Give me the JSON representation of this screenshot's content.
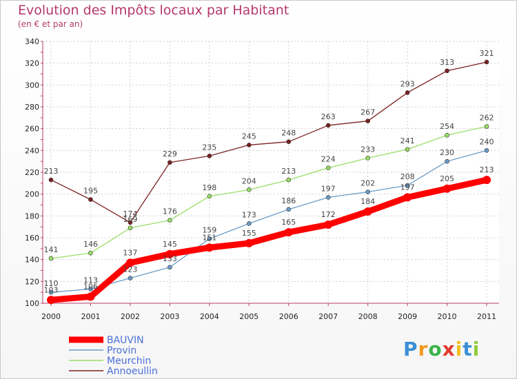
{
  "chart_data": {
    "type": "line",
    "title": "Evolution des Impôts locaux par Habitant",
    "subtitle": "(en € et par an)",
    "xlabel": "",
    "ylabel": "",
    "categories": [
      "2000",
      "2001",
      "2002",
      "2003",
      "2004",
      "2005",
      "2006",
      "2007",
      "2008",
      "2009",
      "2010",
      "2011"
    ],
    "ylim": [
      100,
      340
    ],
    "yticks": [
      100,
      120,
      140,
      160,
      180,
      200,
      220,
      240,
      260,
      280,
      300,
      320,
      340
    ],
    "legend_position": "bottom-left",
    "series": [
      {
        "name": "BAUVIN",
        "color": "#ff0000",
        "values": [
          103,
          106,
          137,
          145,
          151,
          155,
          165,
          172,
          184,
          197,
          205,
          213
        ],
        "labels": [
          "103",
          "106",
          "137",
          "145",
          "151",
          "155",
          "165",
          "172",
          "184",
          "197",
          "205",
          "213"
        ]
      },
      {
        "name": "Provin",
        "color": "#6a9bc8",
        "values": [
          110,
          113,
          123,
          133,
          159,
          173,
          186,
          197,
          202,
          208,
          230,
          240
        ],
        "labels": [
          "110",
          "113",
          "123",
          "133",
          "159",
          "173",
          "186",
          "197",
          "202",
          "208",
          "230",
          "240"
        ]
      },
      {
        "name": "Meurchin",
        "color": "#99dd66",
        "values": [
          141,
          146,
          169,
          176,
          198,
          204,
          213,
          224,
          233,
          241,
          254,
          262
        ],
        "labels": [
          "141",
          "146",
          "169",
          "176",
          "198",
          "204",
          "213",
          "224",
          "233",
          "241",
          "254",
          "262"
        ]
      },
      {
        "name": "Annoeullin",
        "color": "#7a2020",
        "values": [
          213,
          195,
          174,
          229,
          235,
          245,
          248,
          263,
          267,
          293,
          313,
          321
        ],
        "labels": [
          "213",
          "195",
          "174",
          "229",
          "235",
          "245",
          "248",
          "263",
          "267",
          "293",
          "313",
          "321"
        ]
      }
    ]
  },
  "logo": {
    "letters": [
      "P",
      "r",
      "o",
      "x",
      "i",
      "t",
      "i"
    ],
    "colors": [
      "#3a8fd6",
      "#f29a1f",
      "#3ab54a",
      "#e23b2e",
      "#f2c01f",
      "#3a8fd6",
      "#8fcb3a"
    ]
  }
}
